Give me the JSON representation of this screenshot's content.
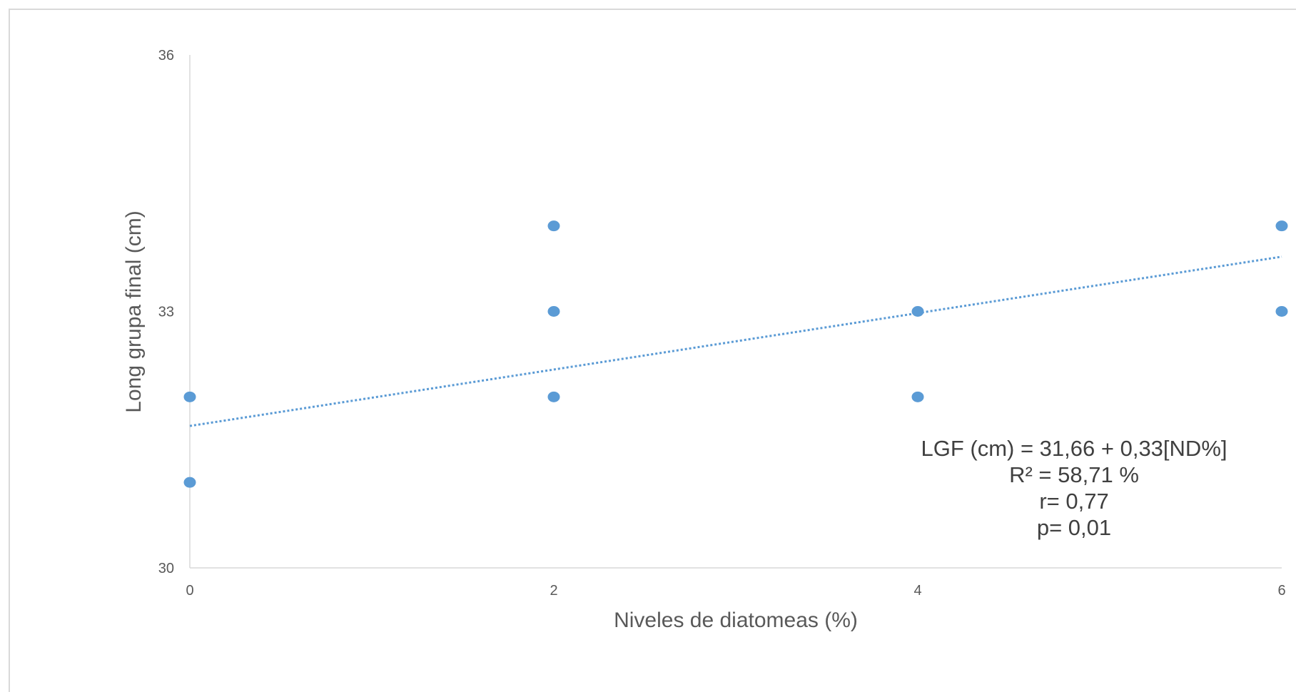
{
  "chart_data": {
    "type": "scatter",
    "title": "",
    "xlabel": "Niveles de diatomeas (%)",
    "ylabel": "Long grupa  final (cm)",
    "xlim": [
      0,
      6
    ],
    "ylim": [
      30,
      36
    ],
    "x_ticks": [
      "0",
      "2",
      "4",
      "6"
    ],
    "y_ticks": [
      "30",
      "33",
      "36"
    ],
    "grid": false,
    "legend": "none",
    "marker_color": "#5B9BD5",
    "trendline_color": "#5B9BD5",
    "series": [
      {
        "points": [
          {
            "x": 0,
            "y": 32
          },
          {
            "x": 0,
            "y": 31
          },
          {
            "x": 2,
            "y": 34
          },
          {
            "x": 2,
            "y": 33
          },
          {
            "x": 2,
            "y": 32
          },
          {
            "x": 4,
            "y": 33
          },
          {
            "x": 4,
            "y": 32
          },
          {
            "x": 6,
            "y": 34
          },
          {
            "x": 6,
            "y": 33
          }
        ]
      }
    ],
    "trendline": {
      "type": "linear",
      "style": "dotted",
      "intercept": 31.66,
      "slope": 0.33
    },
    "annotation": [
      "LGF (cm) =  31,66 + 0,33[ND%]",
      "R² = 58,71 %",
      "r= 0,77",
      "p= 0,01"
    ]
  }
}
